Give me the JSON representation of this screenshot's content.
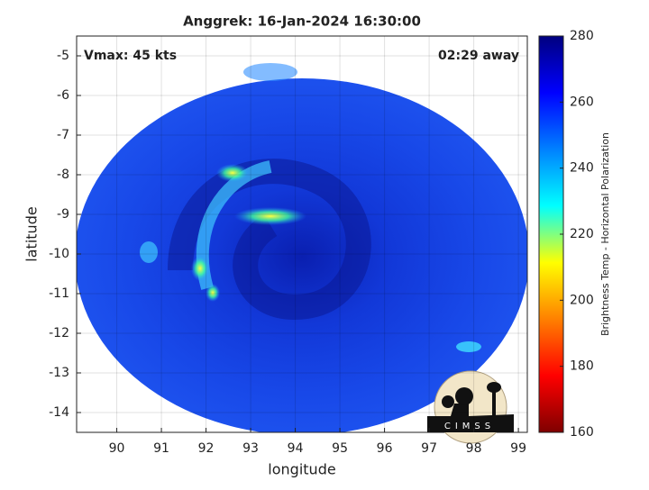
{
  "chart_data": {
    "type": "swath-map",
    "title": "Anggrek: 16-Jan-2024 16:30:00",
    "xlabel": "longitude",
    "ylabel": "latitude",
    "xlim": [
      89.1,
      99.2
    ],
    "ylim": [
      -14.5,
      -4.5
    ],
    "xticks": [
      90,
      91,
      92,
      93,
      94,
      95,
      96,
      97,
      98,
      99
    ],
    "yticks": [
      -5,
      -6,
      -7,
      -8,
      -9,
      -10,
      -11,
      -12,
      -13,
      -14
    ],
    "grid": true,
    "annotations": {
      "left": "Vmax: 45 kts",
      "right": "02:29 away"
    },
    "logo": "CIMSS",
    "colorbar": {
      "label": "Brightness Temp - Horizontal Polarization",
      "lim": [
        160,
        280
      ],
      "ticks": [
        160,
        180,
        200,
        220,
        240,
        260,
        280
      ],
      "colormap": [
        "#7f0000",
        "#ff0000",
        "#ff8000",
        "#ffff00",
        "#00ffff",
        "#0080ff",
        "#0000ff",
        "#00007f"
      ]
    }
  }
}
